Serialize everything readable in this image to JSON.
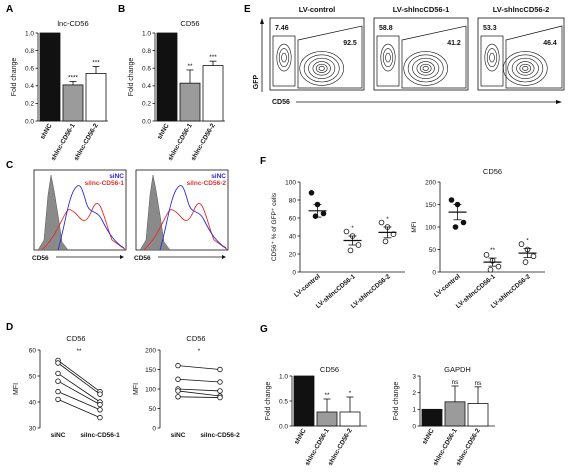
{
  "colors": {
    "black": "#111111",
    "gray": "#9b9b9b",
    "blue": "#2b2bd6",
    "red": "#e23030",
    "hist_gray": "#8a8a8a"
  },
  "panels": {
    "A": {
      "letter": "A"
    },
    "B": {
      "letter": "B"
    },
    "C": {
      "letter": "C"
    },
    "D": {
      "letter": "D"
    },
    "E": {
      "letter": "E"
    },
    "F": {
      "letter": "F"
    },
    "G": {
      "letter": "G"
    }
  },
  "chart_data": [
    {
      "panel": "A",
      "type": "bar",
      "title": "lnc-CD56",
      "ylabel": "Fold change",
      "categories": [
        "shNC",
        "shlnc-CD56-1",
        "shlnc-CD56-2"
      ],
      "values": [
        1.0,
        0.41,
        0.54
      ],
      "errors": [
        0,
        0.04,
        0.08
      ],
      "significance": [
        "",
        "****",
        "***"
      ],
      "ylim": [
        0,
        1.0
      ],
      "yticks": [
        "0.0",
        "0.2",
        "0.4",
        "0.6",
        "0.8",
        "1.0"
      ],
      "fills": [
        "black",
        "gray",
        "white"
      ]
    },
    {
      "panel": "B",
      "type": "bar",
      "title": "CD56",
      "ylabel": "Fold change",
      "categories": [
        "shNC",
        "shlnc-CD56-1",
        "shlnc-CD56-2"
      ],
      "values": [
        1.0,
        0.43,
        0.63
      ],
      "errors": [
        0,
        0.15,
        0.05
      ],
      "significance": [
        "",
        "**",
        "***"
      ],
      "ylim": [
        0,
        1.0
      ],
      "yticks": [
        "0.0",
        "0.2",
        "0.4",
        "0.6",
        "0.8",
        "1.0"
      ],
      "fills": [
        "black",
        "gray",
        "white"
      ]
    },
    {
      "panel": "C",
      "type": "histogram_overlay",
      "xlabel": "CD56",
      "plots": [
        {
          "legend": [
            {
              "name": "siNC",
              "color": "blue"
            },
            {
              "name": "silnc-CD56-1",
              "color": "red"
            }
          ]
        },
        {
          "legend": [
            {
              "name": "siNC",
              "color": "blue"
            },
            {
              "name": "silnc-CD56-2",
              "color": "red"
            }
          ]
        }
      ]
    },
    {
      "panel": "D",
      "type": "paired_scatter",
      "title": "CD56",
      "ylabel": "MFI",
      "categories": [
        "siNC",
        "silnc-CD56-1"
      ],
      "pairs": [
        [
          56,
          44
        ],
        [
          55,
          43
        ],
        [
          51,
          40
        ],
        [
          48,
          39
        ],
        [
          44,
          37
        ],
        [
          41,
          34
        ]
      ],
      "significance": "**",
      "ylim": [
        30,
        60
      ],
      "yticks": [
        "30",
        "40",
        "50",
        "60"
      ]
    },
    {
      "panel": "D",
      "type": "paired_scatter",
      "title": "CD56",
      "ylabel": "MFI",
      "categories": [
        "siNC",
        "silnc-CD56-2"
      ],
      "pairs": [
        [
          160,
          150
        ],
        [
          125,
          118
        ],
        [
          100,
          95
        ],
        [
          95,
          82
        ],
        [
          80,
          78
        ]
      ],
      "significance": "*",
      "ylim": [
        0,
        200
      ],
      "yticks": [
        "0",
        "50",
        "100",
        "150",
        "200"
      ]
    },
    {
      "panel": "E",
      "type": "flow_contour",
      "ylabel": "GFP",
      "xlabel": "CD56",
      "plots": [
        {
          "title": "LV-control",
          "gates": [
            "7.46",
            "92.5"
          ]
        },
        {
          "title": "LV-shlncCD56-1",
          "gates": [
            "58.8",
            "41.2"
          ]
        },
        {
          "title": "LV-shlncCD56-2",
          "gates": [
            "53.3",
            "46.4"
          ]
        }
      ]
    },
    {
      "panel": "F",
      "type": "scatter",
      "ylabel": "CD56⁺ % of GFP⁺ cells",
      "categories": [
        "LV-control",
        "LV-shlncCD56-1",
        "LV-shlncCD56-2"
      ],
      "points": [
        [
          88,
          75,
          65,
          62
        ],
        [
          45,
          40,
          30,
          24
        ],
        [
          55,
          50,
          42,
          34
        ]
      ],
      "means": [
        68,
        35,
        44
      ],
      "sems": [
        7,
        5,
        6
      ],
      "significance": [
        "",
        "*",
        "*"
      ],
      "ylim": [
        0,
        100
      ],
      "yticks": [
        "0",
        "20",
        "40",
        "60",
        "80",
        "100"
      ]
    },
    {
      "panel": "F",
      "type": "scatter",
      "title": "CD56",
      "ylabel": "MFI",
      "categories": [
        "LV-control",
        "LV-shlncCD56-1",
        "LV-shlncCD56-2"
      ],
      "points": [
        [
          160,
          150,
          110,
          100
        ],
        [
          38,
          25,
          12,
          5
        ],
        [
          62,
          50,
          35,
          22
        ]
      ],
      "means": [
        133,
        22,
        42
      ],
      "sems": [
        17,
        9,
        10
      ],
      "significance": [
        "",
        "**",
        "*"
      ],
      "ylim": [
        0,
        200
      ],
      "yticks": [
        "0",
        "50",
        "100",
        "150",
        "200"
      ]
    },
    {
      "panel": "G",
      "type": "bar",
      "title": "CD56",
      "ylabel": "Fold change",
      "categories": [
        "shNC",
        "shlnc-CD56-1",
        "shlnc-CD56-2"
      ],
      "values": [
        1.0,
        0.28,
        0.28
      ],
      "errors": [
        0,
        0.26,
        0.3
      ],
      "significance": [
        "",
        "**",
        "*"
      ],
      "ylim": [
        0,
        1.0
      ],
      "yticks": [
        "0.0",
        "0.5",
        "1.0"
      ],
      "fills": [
        "black",
        "gray",
        "white"
      ]
    },
    {
      "panel": "G",
      "type": "bar",
      "title": "GAPDH",
      "ylabel": "Fold change",
      "categories": [
        "shNC",
        "shlnc-CD56-1",
        "shlnc-CD56-2"
      ],
      "values": [
        1.0,
        1.45,
        1.35
      ],
      "errors": [
        0,
        0.95,
        1.0
      ],
      "significance": [
        "",
        "ns",
        "ns"
      ],
      "ylim": [
        0,
        3
      ],
      "yticks": [
        "0",
        "1",
        "2",
        "3"
      ],
      "fills": [
        "black",
        "gray",
        "white"
      ]
    }
  ]
}
